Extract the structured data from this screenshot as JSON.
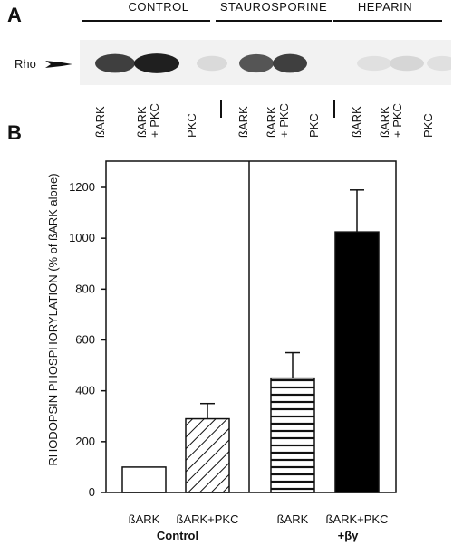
{
  "panel_a": {
    "letter": "A",
    "groups": [
      "CONTROL",
      "STAUROSPORINE",
      "HEPARIN"
    ],
    "row_label": "Rho",
    "lanes": [
      {
        "label": "ßARK",
        "sub": ""
      },
      {
        "label": "ßARK",
        "sub": "+ PKC"
      },
      {
        "label": "PKC",
        "sub": ""
      },
      {
        "label": "ßARK",
        "sub": ""
      },
      {
        "label": "ßARK",
        "sub": "+ PKC"
      },
      {
        "label": "PKC",
        "sub": ""
      },
      {
        "label": "ßARK",
        "sub": ""
      },
      {
        "label": "ßARK",
        "sub": "+ PKC"
      },
      {
        "label": "PKC",
        "sub": ""
      }
    ],
    "band_intensity": [
      0.8,
      0.95,
      0.08,
      0.7,
      0.8,
      0.0,
      0.05,
      0.1,
      0.05
    ]
  },
  "panel_b": {
    "letter": "B"
  },
  "chart_data": {
    "type": "bar",
    "ylabel": "RHODOPSIN PHOSPHORYLATION (% of ßARK alone)",
    "ylim": [
      0,
      1300
    ],
    "yticks": [
      0,
      200,
      400,
      600,
      800,
      1000,
      1200
    ],
    "categories": [
      "ßARK",
      "ßARK+PKC",
      "ßARK",
      "ßARK+PKC"
    ],
    "values": [
      100,
      290,
      450,
      1025
    ],
    "errors": [
      0,
      60,
      100,
      165
    ],
    "patterns": [
      "none",
      "diagonal",
      "horizontal",
      "solid"
    ],
    "groups": [
      {
        "label": "Control",
        "bars": [
          0,
          1
        ]
      },
      {
        "label": "+βγ",
        "bars": [
          2,
          3
        ]
      }
    ]
  }
}
